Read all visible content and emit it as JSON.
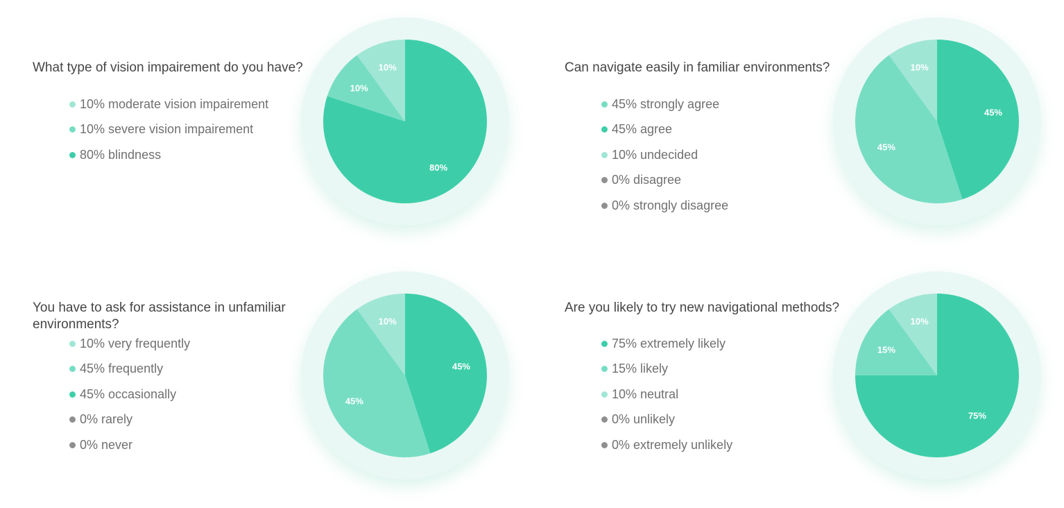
{
  "colors": {
    "dark": "#3dcea9",
    "mid": "#76ddc3",
    "light": "#a0e6d5",
    "gray": "#8f8f8f"
  },
  "chart_data": [
    {
      "type": "pie",
      "title": "What type of vision impairement do you have?",
      "legend": [
        {
          "text": "10% moderate vision impairement",
          "color": "#a0e6d5"
        },
        {
          "text": "10% severe vision impairement",
          "color": "#76ddc3"
        },
        {
          "text": "80% blindness",
          "color": "#3dcea9"
        }
      ],
      "slices": [
        {
          "label": "blindness",
          "value": 80,
          "display": "80%",
          "color": "#3dcea9"
        },
        {
          "label": "severe vision impairement",
          "value": 10,
          "display": "10%",
          "color": "#76ddc3"
        },
        {
          "label": "moderate vision impairement",
          "value": 10,
          "display": "10%",
          "color": "#a0e6d5"
        }
      ]
    },
    {
      "type": "pie",
      "title": "Can navigate easily in familiar environments?",
      "legend": [
        {
          "text": "45% strongly agree",
          "color": "#76ddc3"
        },
        {
          "text": "45% agree",
          "color": "#3dcea9"
        },
        {
          "text": "10% undecided",
          "color": "#a0e6d5"
        },
        {
          "text": "0% disagree",
          "color": "#8f8f8f"
        },
        {
          "text": "0% strongly disagree",
          "color": "#8f8f8f"
        }
      ],
      "slices": [
        {
          "label": "agree",
          "value": 45,
          "display": "45%",
          "color": "#3dcea9"
        },
        {
          "label": "strongly agree",
          "value": 45,
          "display": "45%",
          "color": "#76ddc3"
        },
        {
          "label": "undecided",
          "value": 10,
          "display": "10%",
          "color": "#a0e6d5"
        }
      ]
    },
    {
      "type": "pie",
      "title": "You have to ask for assistance in unfamiliar environments?",
      "legend": [
        {
          "text": "10% very frequently",
          "color": "#a0e6d5"
        },
        {
          "text": "45% frequently",
          "color": "#76ddc3"
        },
        {
          "text": "45% occasionally",
          "color": "#3dcea9"
        },
        {
          "text": "0% rarely",
          "color": "#8f8f8f"
        },
        {
          "text": "0% never",
          "color": "#8f8f8f"
        }
      ],
      "slices": [
        {
          "label": "occasionally",
          "value": 45,
          "display": "45%",
          "color": "#3dcea9"
        },
        {
          "label": "frequently",
          "value": 45,
          "display": "45%",
          "color": "#76ddc3"
        },
        {
          "label": "very frequently",
          "value": 10,
          "display": "10%",
          "color": "#a0e6d5"
        }
      ]
    },
    {
      "type": "pie",
      "title": "Are you likely to try new navigational methods?",
      "legend": [
        {
          "text": "75% extremely likely",
          "color": "#3dcea9"
        },
        {
          "text": "15% likely",
          "color": "#76ddc3"
        },
        {
          "text": "10% neutral",
          "color": "#a0e6d5"
        },
        {
          "text": "0% unlikely",
          "color": "#8f8f8f"
        },
        {
          "text": "0% extremely unlikely",
          "color": "#8f8f8f"
        }
      ],
      "slices": [
        {
          "label": "extremely likely",
          "value": 75,
          "display": "75%",
          "color": "#3dcea9"
        },
        {
          "label": "likely",
          "value": 15,
          "display": "15%",
          "color": "#76ddc3"
        },
        {
          "label": "neutral",
          "value": 10,
          "display": "10%",
          "color": "#a0e6d5"
        }
      ]
    }
  ]
}
